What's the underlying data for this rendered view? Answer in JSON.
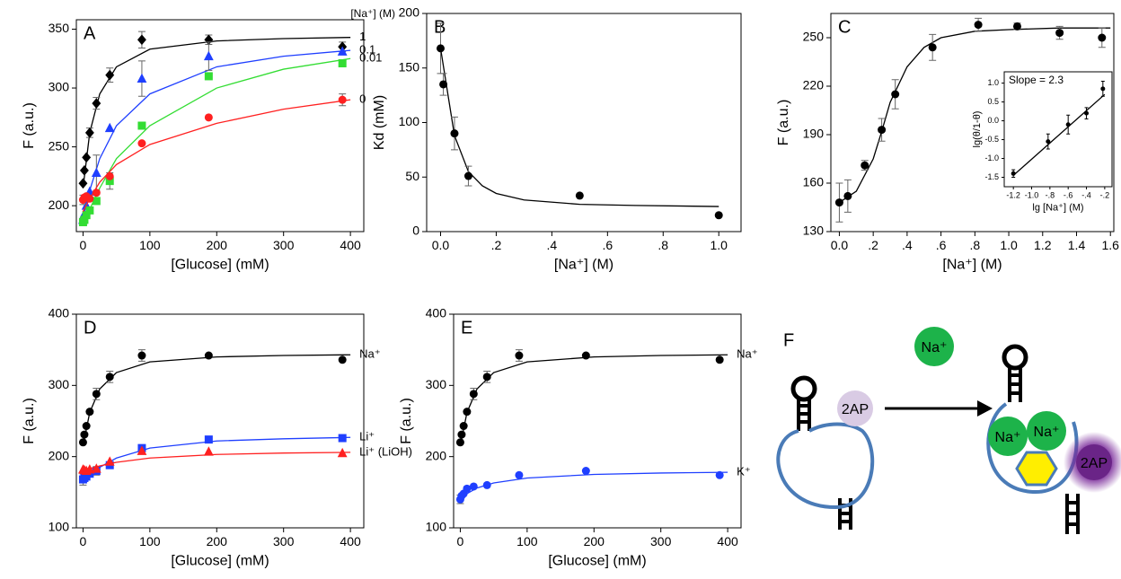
{
  "chart_data": [
    {
      "type": "scatter",
      "panel_label": "A",
      "xlabel": "[Glucose] (mM)",
      "ylabel": "F (a.u.)",
      "legend_title": "[Na⁺] (M)",
      "xlim": [
        -10,
        420
      ],
      "ylim": [
        178,
        358
      ],
      "xticks": [
        0,
        100,
        200,
        300,
        400
      ],
      "yticks": [
        200,
        250,
        300,
        350
      ],
      "x": [
        0,
        2,
        5,
        10,
        20,
        40,
        88,
        188,
        388
      ],
      "fit_x": [
        0,
        10,
        25,
        50,
        100,
        200,
        300,
        400
      ],
      "series": [
        {
          "name": "1",
          "color": "#000000",
          "marker": "diamond",
          "values": [
            219,
            230,
            241,
            262,
            287,
            311,
            341,
            341,
            335
          ],
          "errors": [
            null,
            null,
            null,
            4,
            5,
            6,
            7,
            4,
            4
          ],
          "fit": [
            215,
            262,
            295,
            318,
            333,
            340,
            342,
            343
          ]
        },
        {
          "name": "0.1",
          "color": "#1f3fff",
          "marker": "triangle",
          "values": [
            188,
            193,
            200,
            212,
            228,
            266,
            308,
            327,
            331
          ],
          "errors": [
            null,
            null,
            null,
            null,
            15,
            null,
            15,
            12,
            null
          ],
          "fit": [
            190,
            213,
            240,
            268,
            295,
            318,
            327,
            332
          ]
        },
        {
          "name": "0.01",
          "color": "#33dd33",
          "marker": "square",
          "values": [
            186,
            188,
            192,
            196,
            204,
            221,
            268,
            310,
            321
          ],
          "errors": [
            null,
            null,
            null,
            null,
            null,
            7,
            null,
            null,
            3
          ],
          "fit": [
            185,
            197,
            215,
            240,
            268,
            300,
            316,
            325
          ]
        },
        {
          "name": "0",
          "color": "#ff2020",
          "marker": "circle",
          "values": [
            205,
            207,
            208,
            206,
            211,
            225,
            253,
            275,
            290
          ],
          "errors": [
            4,
            null,
            null,
            null,
            null,
            null,
            null,
            null,
            5
          ],
          "fit": [
            195,
            206,
            220,
            235,
            252,
            270,
            282,
            290
          ]
        }
      ]
    },
    {
      "type": "scatter",
      "panel_label": "B",
      "xlabel": "[Na⁺] (M)",
      "ylabel": "Kd (mM)",
      "xlim": [
        -0.05,
        1.08
      ],
      "ylim": [
        0,
        200
      ],
      "xticks": [
        {
          "value": 0,
          "label": "0.0"
        },
        {
          "value": 0.2,
          "label": ".2"
        },
        {
          "value": 0.4,
          "label": ".4"
        },
        {
          "value": 0.6,
          "label": ".6"
        },
        {
          "value": 0.8,
          "label": ".8"
        },
        {
          "value": 1,
          "label": "1.0"
        }
      ],
      "yticks": [
        0,
        50,
        100,
        150,
        200
      ],
      "x": [
        0,
        0.01,
        0.05,
        0.1,
        0.5,
        1.0
      ],
      "fit_x": [
        0,
        0.05,
        0.1,
        0.15,
        0.2,
        0.3,
        0.5,
        0.7,
        1.0
      ],
      "series": [
        {
          "color": "#000000",
          "marker": "circle",
          "values": [
            168,
            135,
            90,
            51,
            33,
            15
          ],
          "errors": [
            23,
            10,
            15,
            9,
            null,
            null
          ],
          "fit": [
            168,
            88,
            55,
            42,
            35,
            29,
            25,
            24,
            23
          ]
        }
      ]
    },
    {
      "type": "scatter",
      "panel_label": "C",
      "xlabel": "[Na⁺] (M)",
      "ylabel": "F (a.u.)",
      "xlim": [
        -0.05,
        1.62
      ],
      "ylim": [
        130,
        265
      ],
      "xticks": [
        {
          "value": 0,
          "label": "0.0"
        },
        {
          "value": 0.2,
          "label": ".2"
        },
        {
          "value": 0.4,
          "label": ".4"
        },
        {
          "value": 0.6,
          "label": ".6"
        },
        {
          "value": 0.8,
          "label": ".8"
        },
        {
          "value": 1,
          "label": "1.0"
        },
        {
          "value": 1.2,
          "label": "1.2"
        },
        {
          "value": 1.4,
          "label": "1.4"
        },
        {
          "value": 1.6,
          "label": "1.6"
        }
      ],
      "yticks": [
        130,
        160,
        190,
        220,
        250
      ],
      "x": [
        0,
        0.05,
        0.15,
        0.25,
        0.33,
        0.55,
        0.82,
        1.05,
        1.3,
        1.55
      ],
      "fit_x": [
        0,
        0.1,
        0.2,
        0.25,
        0.3,
        0.4,
        0.5,
        0.6,
        0.8,
        1.0,
        1.3,
        1.6
      ],
      "series": [
        {
          "color": "#000000",
          "marker": "circle",
          "values": [
            148,
            152,
            171,
            193,
            215,
            244,
            258,
            257,
            253,
            250
          ],
          "errors": [
            12,
            10,
            3,
            7,
            9,
            8,
            4,
            2,
            4,
            6
          ],
          "fit": [
            148,
            155,
            175,
            192,
            210,
            232,
            244,
            250,
            254,
            255,
            256,
            256
          ]
        }
      ],
      "inset": {
        "title": "Slope = 2.3",
        "xlabel": "lg [Na⁺] (M)",
        "ylabel": "lg(θ/1-θ)",
        "xlim": [
          -1.3,
          -0.12
        ],
        "ylim": [
          -1.75,
          1.3
        ],
        "xticks": [
          {
            "value": -1.2,
            "label": "-1.2"
          },
          {
            "value": -1,
            "label": "-1.0"
          },
          {
            "value": -0.8,
            "label": "-.8"
          },
          {
            "value": -0.6,
            "label": "-.6"
          },
          {
            "value": -0.4,
            "label": "-.4"
          },
          {
            "value": -0.2,
            "label": "-.2"
          }
        ],
        "yticks": [
          {
            "value": -1.5,
            "label": "-1.5"
          },
          {
            "value": -1,
            "label": "-1.0"
          },
          {
            "value": -0.5,
            "label": "-0.5"
          },
          {
            "value": 0,
            "label": "0.0"
          },
          {
            "value": 0.5,
            "label": "0.5"
          },
          {
            "value": 1,
            "label": "1.0"
          }
        ],
        "x": [
          -1.2,
          -0.82,
          -0.6,
          -0.4,
          -0.22
        ],
        "fit_x": [
          -1.2,
          -0.2
        ],
        "series": [
          {
            "color": "#000000",
            "marker": "circle",
            "values": [
              -1.4,
              -0.55,
              -0.1,
              0.2,
              0.85
            ],
            "errors": [
              0.1,
              0.2,
              0.25,
              0.15,
              0.2
            ],
            "fit": [
              -1.45,
              0.7
            ]
          }
        ]
      }
    },
    {
      "type": "scatter",
      "panel_label": "D",
      "xlabel": "[Glucose] (mM)",
      "ylabel": "F (a.u.)",
      "xlim": [
        -10,
        420
      ],
      "ylim": [
        100,
        400
      ],
      "xticks": [
        0,
        100,
        200,
        300,
        400
      ],
      "yticks": [
        100,
        200,
        300,
        400
      ],
      "x": [
        0,
        2,
        5,
        10,
        20,
        40,
        88,
        188,
        388
      ],
      "fit_x": [
        0,
        10,
        25,
        50,
        100,
        200,
        300,
        400
      ],
      "series": [
        {
          "name": "Na⁺",
          "color": "#000000",
          "marker": "circle",
          "values": [
            220,
            231,
            243,
            263,
            288,
            312,
            342,
            342,
            336
          ],
          "errors": [
            null,
            null,
            null,
            null,
            8,
            8,
            8,
            null,
            null
          ],
          "fit": [
            215,
            262,
            295,
            318,
            333,
            340,
            342,
            343
          ]
        },
        {
          "name": "Li⁺",
          "color": "#1f3fff",
          "marker": "square",
          "values": [
            168,
            170,
            172,
            176,
            180,
            188,
            212,
            224,
            226
          ],
          "errors": [
            8,
            null,
            null,
            null,
            6,
            null,
            null,
            null,
            null
          ],
          "fit": [
            168,
            175,
            185,
            198,
            212,
            222,
            225,
            227
          ]
        },
        {
          "name": "Li⁺ (LiOH)",
          "color": "#ff2020",
          "marker": "triangle",
          "values": [
            182,
            181,
            180,
            182,
            183,
            193,
            208,
            207,
            205
          ],
          "errors": [
            null,
            null,
            null,
            null,
            null,
            null,
            null,
            null,
            null
          ],
          "fit": [
            180,
            183,
            187,
            192,
            198,
            203,
            205,
            206
          ]
        }
      ]
    },
    {
      "type": "scatter",
      "panel_label": "E",
      "xlabel": "[Glucose] (mM)",
      "ylabel": "F (a.u.)",
      "xlim": [
        -10,
        420
      ],
      "ylim": [
        100,
        400
      ],
      "xticks": [
        0,
        100,
        200,
        300,
        400
      ],
      "yticks": [
        100,
        200,
        300,
        400
      ],
      "x": [
        0,
        2,
        5,
        10,
        20,
        40,
        88,
        188,
        388
      ],
      "fit_x": [
        0,
        10,
        25,
        50,
        100,
        200,
        300,
        400
      ],
      "series": [
        {
          "name": "Na⁺",
          "color": "#000000",
          "marker": "circle",
          "values": [
            220,
            231,
            243,
            263,
            288,
            312,
            342,
            342,
            336
          ],
          "errors": [
            null,
            null,
            null,
            null,
            8,
            8,
            8,
            null,
            null
          ],
          "fit": [
            215,
            262,
            295,
            318,
            333,
            340,
            342,
            343
          ]
        },
        {
          "name": "K⁺",
          "color": "#1f3fff",
          "marker": "circle",
          "values": [
            140,
            145,
            148,
            155,
            158,
            160,
            174,
            180,
            174
          ],
          "errors": [
            6,
            null,
            null,
            null,
            null,
            null,
            null,
            null,
            null
          ],
          "fit": [
            140,
            148,
            156,
            163,
            170,
            175,
            177,
            178
          ]
        }
      ]
    }
  ],
  "diagram": {
    "label": "F",
    "ion": "Na⁺",
    "probe": "2AP"
  }
}
